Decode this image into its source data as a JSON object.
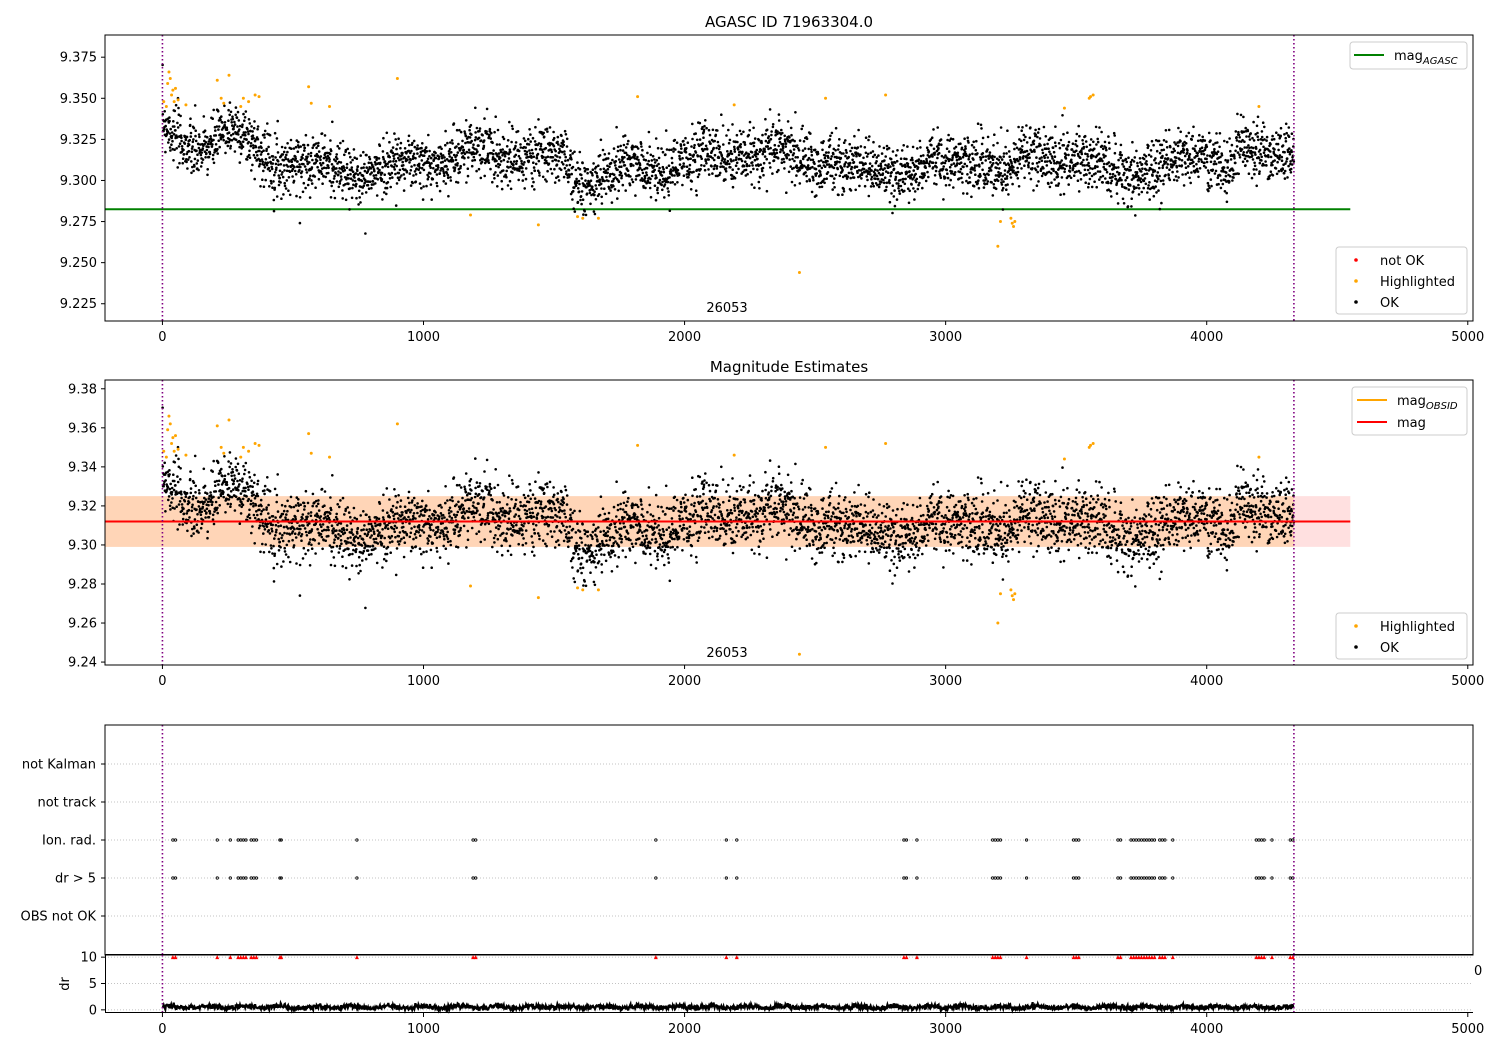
{
  "chart_data": [
    {
      "type": "scatter",
      "title": "AGASC ID 71963304.0",
      "xlim": [
        -220,
        5020
      ],
      "ylim": [
        9.2145,
        9.3885
      ],
      "xticks": [
        0,
        1000,
        2000,
        3000,
        4000,
        5000
      ],
      "yticks": [
        9.225,
        9.25,
        9.275,
        9.3,
        9.325,
        9.35,
        9.375
      ],
      "ytick_labels": [
        "9.225",
        "9.250",
        "9.275",
        "9.300",
        "9.325",
        "9.350",
        "9.375"
      ],
      "vlines": [
        0,
        4334
      ],
      "annotation": "26053",
      "annotation_x": 2170,
      "legend_upper": [
        {
          "name": "mag",
          "sub": "AGASC",
          "color": "#008000",
          "kind": "line"
        }
      ],
      "legend_lower": [
        {
          "name": "not OK",
          "color": "#ff0000",
          "kind": "marker"
        },
        {
          "name": "Highlighted",
          "color": "#ffa500",
          "kind": "marker"
        },
        {
          "name": "OK",
          "color": "#000000",
          "kind": "marker"
        }
      ],
      "hline": {
        "name": "mag_AGASC",
        "y": 9.2825,
        "x": [
          -220,
          4550
        ],
        "color": "#008000"
      },
      "series": {
        "ok": {
          "n": 4334,
          "mean": 9.3115,
          "noise": 0.0085
        },
        "highlighted": {
          "x": [
            5,
            15,
            20,
            25,
            30,
            35,
            40,
            45,
            50,
            60,
            90,
            210,
            225,
            235,
            255,
            300,
            310,
            330,
            355,
            370,
            560,
            570,
            640,
            900,
            1180,
            1440,
            1590,
            1610,
            1670,
            1820,
            2190,
            2440,
            2540,
            2770,
            3200,
            3210,
            3250,
            3255,
            3260,
            3265,
            3455,
            3550,
            3555,
            3565,
            4200
          ],
          "y": [
            9.348,
            9.345,
            9.359,
            9.366,
            9.362,
            9.352,
            9.355,
            9.348,
            9.356,
            9.349,
            9.346,
            9.361,
            9.35,
            9.347,
            9.364,
            9.345,
            9.35,
            9.348,
            9.352,
            9.351,
            9.357,
            9.347,
            9.345,
            9.362,
            9.279,
            9.273,
            9.278,
            9.277,
            9.277,
            9.351,
            9.346,
            9.244,
            9.35,
            9.352,
            9.26,
            9.275,
            9.277,
            9.274,
            9.272,
            9.275,
            9.344,
            9.35,
            9.351,
            9.352,
            9.345
          ]
        }
      }
    },
    {
      "type": "scatter",
      "title": "Magnitude Estimates",
      "xlim": [
        -220,
        5020
      ],
      "ylim": [
        9.2385,
        9.3845
      ],
      "xticks": [
        0,
        1000,
        2000,
        3000,
        4000,
        5000
      ],
      "yticks": [
        9.24,
        9.26,
        9.28,
        9.3,
        9.32,
        9.34,
        9.36,
        9.38
      ],
      "ytick_labels": [
        "9.24",
        "9.26",
        "9.28",
        "9.30",
        "9.32",
        "9.34",
        "9.36",
        "9.38"
      ],
      "vlines": [
        0,
        4334
      ],
      "annotation": "26053",
      "annotation_x": 2170,
      "legend_upper": [
        {
          "name": "mag",
          "sub": "OBSID",
          "color": "#ffa500",
          "kind": "line"
        },
        {
          "name": "mag",
          "sub": "",
          "color": "#ff0000",
          "kind": "line"
        }
      ],
      "legend_lower": [
        {
          "name": "Highlighted",
          "color": "#ffa500",
          "kind": "marker"
        },
        {
          "name": "OK",
          "color": "#000000",
          "kind": "marker"
        }
      ],
      "hline": {
        "name": "mag",
        "y": 9.312,
        "x": [
          -220,
          4550
        ],
        "color": "#ff0000"
      },
      "bands": [
        {
          "y": [
            9.299,
            9.325
          ],
          "x": [
            -220,
            4550
          ],
          "color": "#ff0000",
          "opacity": 0.12
        },
        {
          "y": [
            9.299,
            9.325
          ],
          "x": [
            -220,
            4334
          ],
          "color": "#ffa500",
          "opacity": 0.18
        }
      ]
    },
    {
      "type": "scatter",
      "title": "",
      "xlim": [
        -220,
        5020
      ],
      "categories": [
        "not Kalman",
        "not track",
        "Ion. rad.",
        "dr > 5",
        "OBS not OK"
      ],
      "vlines": [
        0,
        4334
      ],
      "flagged_x": [
        40,
        50,
        210,
        260,
        290,
        300,
        310,
        320,
        340,
        350,
        360,
        450,
        455,
        745,
        1190,
        1200,
        1890,
        2160,
        2200,
        2840,
        2850,
        2890,
        3180,
        3190,
        3200,
        3210,
        3310,
        3490,
        3500,
        3510,
        3660,
        3670,
        3710,
        3720,
        3730,
        3740,
        3750,
        3760,
        3770,
        3780,
        3790,
        3800,
        3820,
        3830,
        3840,
        3870,
        4190,
        4200,
        4210,
        4220,
        4250,
        4320,
        4330
      ],
      "flagged_rows": [
        "Ion. rad.",
        "dr > 5"
      ]
    },
    {
      "type": "scatter",
      "title": "",
      "xlim": [
        -220,
        5020
      ],
      "ylim": [
        -0.6,
        10.6
      ],
      "ylabel": "dr",
      "yticks": [
        0,
        5,
        10
      ],
      "ytick_labels": [
        "0",
        "5",
        "10"
      ],
      "xticks": [
        0,
        1000,
        2000,
        3000,
        4000,
        5000
      ],
      "vlines": [
        0,
        4334
      ],
      "clip_value": 10,
      "corner_text": "0",
      "series": {
        "n": 4334,
        "mean": 0.5,
        "noise": 0.25,
        "color": "#000000"
      }
    }
  ]
}
